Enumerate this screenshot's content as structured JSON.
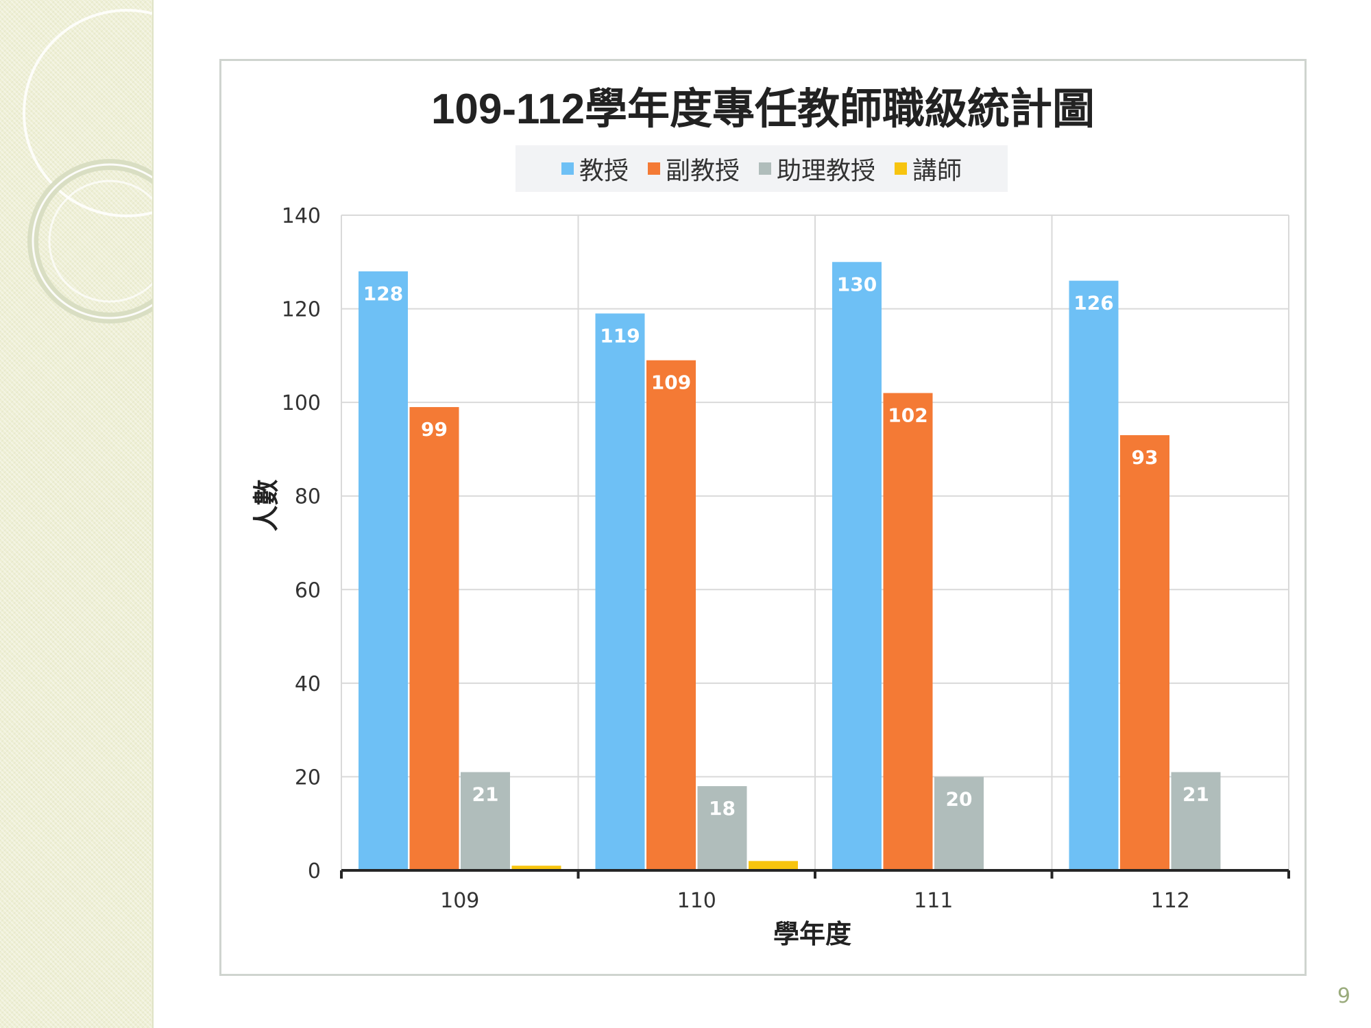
{
  "page_number": "9",
  "colors": {
    "professor": "#6ec0f5",
    "associate_professor": "#f47a35",
    "assistant_professor": "#b0bdbb",
    "lecturer": "#f7c40f",
    "gridline": "#d9d9d9",
    "axis": "#262626"
  },
  "chart_data": {
    "type": "bar",
    "title": "109-112學年度專任教師職級統計圖",
    "xlabel": "學年度",
    "ylabel": "人數",
    "categories": [
      "109",
      "110",
      "111",
      "112"
    ],
    "series": [
      {
        "name": "教授",
        "values": [
          128,
          119,
          130,
          126
        ],
        "color": "#6ec0f5",
        "labels": [
          "128",
          "119",
          "130",
          "126"
        ]
      },
      {
        "name": "副教授",
        "values": [
          99,
          109,
          102,
          93
        ],
        "color": "#f47a35",
        "labels": [
          "99",
          "109",
          "102",
          "93"
        ]
      },
      {
        "name": "助理教授",
        "values": [
          21,
          18,
          20,
          21
        ],
        "color": "#b0bdbb",
        "labels": [
          "21",
          "18",
          "20",
          "21"
        ]
      },
      {
        "name": "講師",
        "values": [
          1,
          2,
          0,
          0
        ],
        "color": "#f7c40f",
        "labels": [
          "",
          "",
          "",
          ""
        ]
      }
    ],
    "ylim": [
      0,
      140
    ],
    "yticks": [
      0,
      20,
      40,
      60,
      80,
      100,
      120,
      140
    ],
    "ytick_labels": [
      "0",
      "20",
      "40",
      "60",
      "80",
      "100",
      "120",
      "140"
    ],
    "grid": true,
    "legend_position": "top-center"
  }
}
